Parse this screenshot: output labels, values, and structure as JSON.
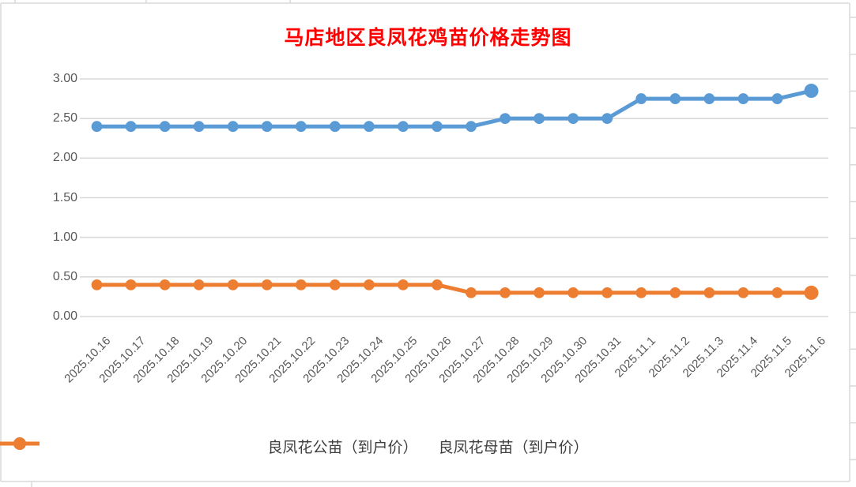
{
  "chart_data": {
    "type": "line",
    "title": "马店地区良凤花鸡苗价格走势图",
    "title_color": "#FF0000",
    "categories": [
      "2025.10.16",
      "2025.10.17",
      "2025.10.18",
      "2025.10.19",
      "2025.10.20",
      "2025.10.21",
      "2025.10.22",
      "2025.10.23",
      "2025.10.24",
      "2025.10.25",
      "2025.10.26",
      "2025.10.27",
      "2025.10.28",
      "2025.10.29",
      "2025.10.30",
      "2025.10.31",
      "2025.11.1",
      "2025.11.2",
      "2025.11.3",
      "2025.11.4",
      "2025.11.5",
      "2025.11.6"
    ],
    "series": [
      {
        "name": "良凤花公苗（到户价）",
        "color": "#5B9BD5",
        "values": [
          2.4,
          2.4,
          2.4,
          2.4,
          2.4,
          2.4,
          2.4,
          2.4,
          2.4,
          2.4,
          2.4,
          2.4,
          2.5,
          2.5,
          2.5,
          2.5,
          2.75,
          2.75,
          2.75,
          2.75,
          2.75,
          2.85
        ]
      },
      {
        "name": "良凤花母苗（到户价）",
        "color": "#ED7D31",
        "values": [
          0.4,
          0.4,
          0.4,
          0.4,
          0.4,
          0.4,
          0.4,
          0.4,
          0.4,
          0.4,
          0.4,
          0.3,
          0.3,
          0.3,
          0.3,
          0.3,
          0.3,
          0.3,
          0.3,
          0.3,
          0.3,
          0.3
        ]
      }
    ],
    "xlabel": "",
    "ylabel": "",
    "ylim": [
      0,
      3
    ],
    "yticks": [
      0,
      0.5,
      1,
      1.5,
      2,
      2.5,
      3
    ],
    "ytick_labels": [
      "0.00",
      "0.50",
      "1.00",
      "1.50",
      "2.00",
      "2.50",
      "3.00"
    ],
    "grid": true,
    "legend_position": "bottom",
    "xtick_rotation": -45
  },
  "style": {
    "grid_color": "#D9D9D9",
    "spreadsheet_line_color": "#D9D9D9",
    "axis_label_color": "#595959",
    "background": "#FFFFFF"
  }
}
